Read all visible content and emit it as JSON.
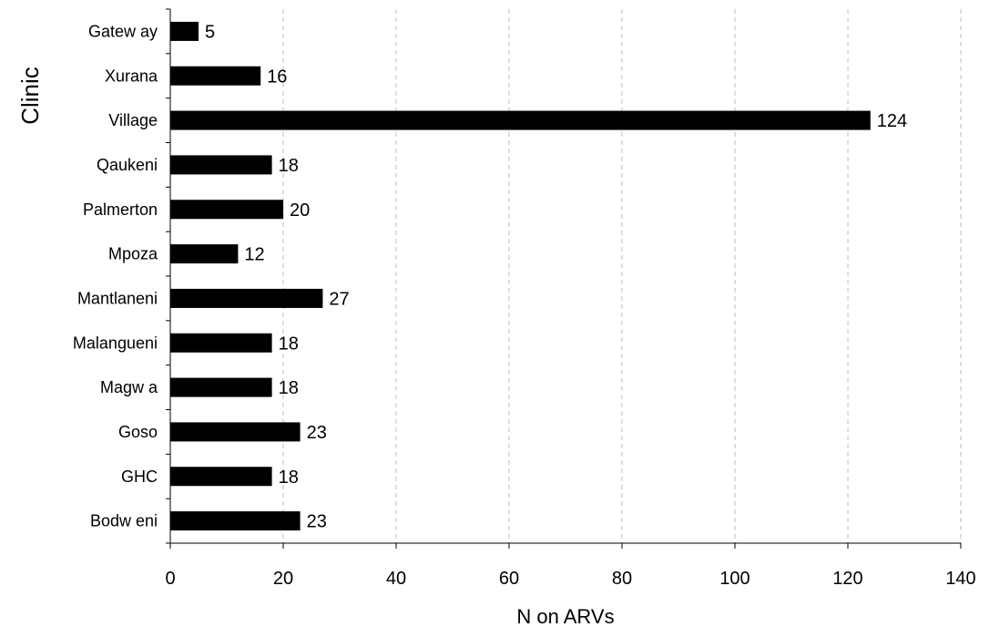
{
  "chart_data": {
    "type": "bar",
    "orientation": "horizontal",
    "title": "",
    "xlabel": "N on ARVs",
    "ylabel": "Clinic",
    "xlim": [
      0,
      140
    ],
    "xticks": [
      0,
      20,
      40,
      60,
      80,
      100,
      120,
      140
    ],
    "grid": "vertical dashed",
    "legend": "none",
    "categories": [
      "Gatew ay",
      "Xurana",
      "Village",
      "Qaukeni",
      "Palmerton",
      "Mpoza",
      "Mantlaneni",
      "Malangueni",
      "Magw a",
      "Goso",
      "GHC",
      "Bodw eni"
    ],
    "values": [
      5,
      16,
      124,
      18,
      20,
      12,
      27,
      18,
      18,
      23,
      18,
      23
    ],
    "colors": {
      "bar": "#000000",
      "grid": "#bbbbbb",
      "axis": "#000000"
    }
  }
}
